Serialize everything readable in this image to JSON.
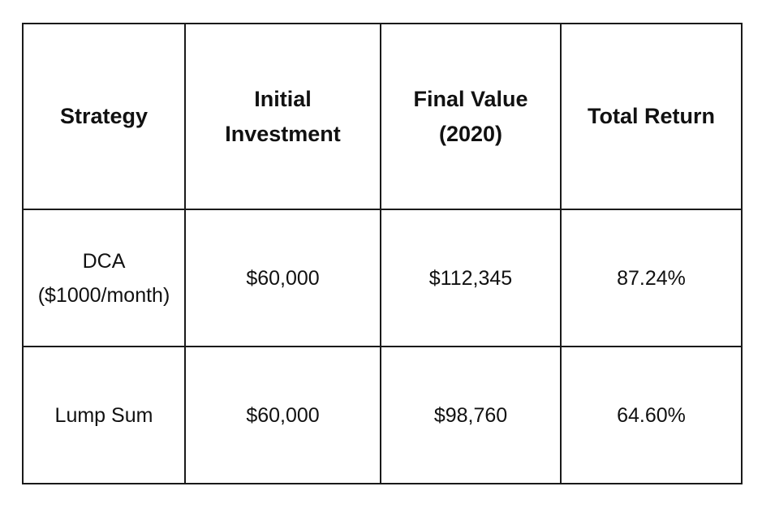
{
  "table": {
    "headers": [
      {
        "lines": [
          "Strategy"
        ]
      },
      {
        "lines": [
          "Initial",
          "Investment"
        ]
      },
      {
        "lines": [
          "Final Value",
          "(2020)"
        ]
      },
      {
        "lines": [
          "Total Return"
        ]
      }
    ],
    "rows": [
      {
        "strategy_lines": [
          "DCA",
          "($1000/month)"
        ],
        "initial_investment": "$60,000",
        "final_value": "$112,345",
        "total_return": "87.24%"
      },
      {
        "strategy_lines": [
          "Lump Sum"
        ],
        "initial_investment": "$60,000",
        "final_value": "$98,760",
        "total_return": "64.60%"
      }
    ]
  }
}
